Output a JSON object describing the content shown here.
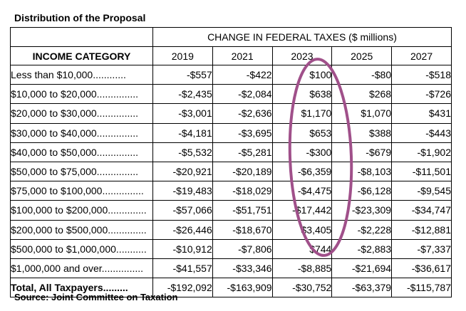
{
  "title": "Distribution of the Proposal",
  "header_super": "CHANGE IN FEDERAL TAXES ($ millions)",
  "category_header": "INCOME CATEGORY",
  "years": [
    "2019",
    "2021",
    "2023",
    "2025",
    "2027"
  ],
  "rows": [
    {
      "category": "Less than $10,000............",
      "values": [
        "-$557",
        "-$422",
        "$100",
        "-$80",
        "-$518"
      ]
    },
    {
      "category": "$10,000 to $20,000...............",
      "values": [
        "-$2,435",
        "-$2,084",
        "$638",
        "$268",
        "-$726"
      ]
    },
    {
      "category": "$20,000 to $30,000...............",
      "values": [
        "-$3,001",
        "-$2,636",
        "$1,170",
        "$1,070",
        "$431"
      ]
    },
    {
      "category": "$30,000 to $40,000...............",
      "values": [
        "-$4,181",
        "-$3,695",
        "$653",
        "$388",
        "-$443"
      ]
    },
    {
      "category": "$40,000 to $50,000...............",
      "values": [
        "-$5,532",
        "-$5,281",
        "-$300",
        "-$679",
        "-$1,902"
      ]
    },
    {
      "category": "$50,000 to $75,000...............",
      "values": [
        "-$20,921",
        "-$20,189",
        "-$6,359",
        "-$8,103",
        "-$11,501"
      ]
    },
    {
      "category": "$75,000 to $100,000...............",
      "values": [
        "-$19,483",
        "-$18,029",
        "-$4,475",
        "-$6,128",
        "-$9,545"
      ]
    },
    {
      "category": "$100,000 to $200,000..............",
      "values": [
        "-$57,066",
        "-$51,751",
        "-$17,442",
        "-$23,309",
        "-$34,747"
      ]
    },
    {
      "category": "$200,000 to $500,000..............",
      "values": [
        "-$26,446",
        "-$18,670",
        "$3,405",
        "-$2,228",
        "-$12,881"
      ]
    },
    {
      "category": "$500,000 to $1,000,000...........",
      "values": [
        "-$10,912",
        "-$7,806",
        "$744",
        "-$2,883",
        "-$7,337"
      ]
    },
    {
      "category": "$1,000,000 and over...............",
      "values": [
        "-$41,557",
        "-$33,346",
        "-$8,885",
        "-$21,694",
        "-$36,617"
      ]
    }
  ],
  "total": {
    "category": "Total, All Taxpayers.........",
    "values": [
      "-$192,092",
      "-$163,909",
      "-$30,752",
      "-$63,379",
      "-$115,787"
    ]
  },
  "source": "Source: Joint Committee on Taxation",
  "highlight_color": "#a0508a"
}
